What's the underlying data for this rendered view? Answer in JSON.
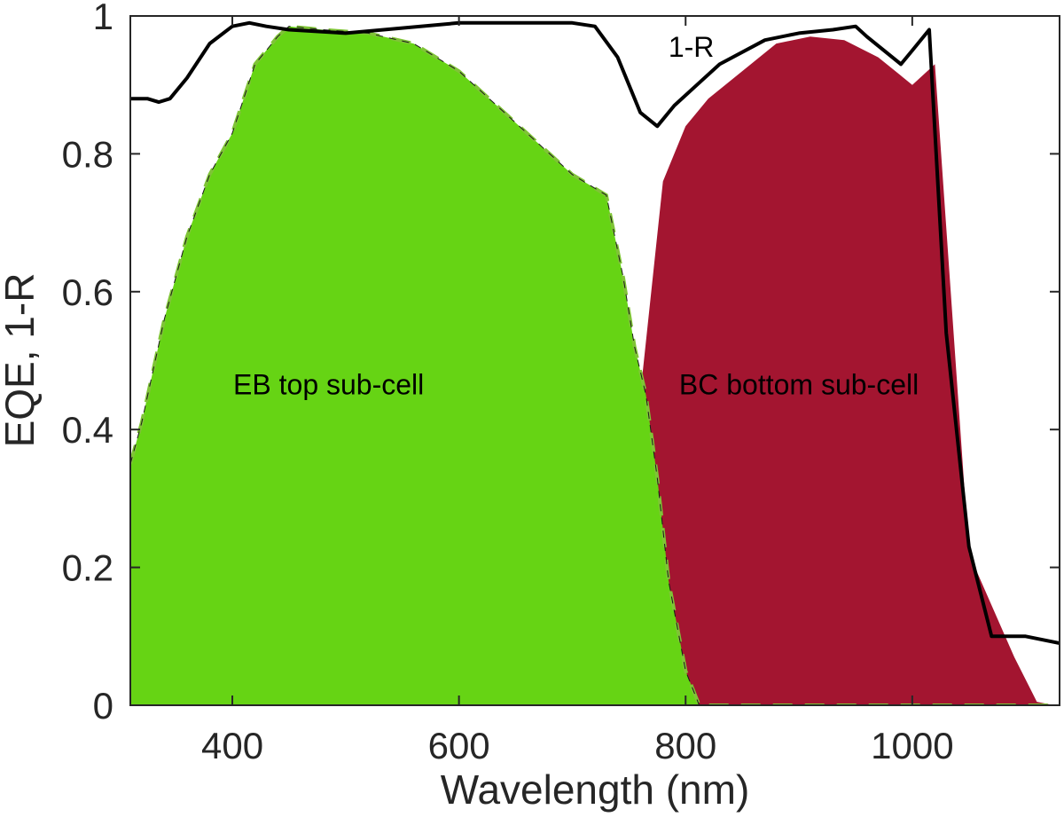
{
  "chart_data": {
    "type": "area",
    "xlabel": "Wavelength (nm)",
    "ylabel": "EQE, 1-R",
    "xlim": [
      310,
      1130
    ],
    "ylim": [
      0,
      1
    ],
    "xticks": [
      400,
      600,
      800,
      1000
    ],
    "yticks": [
      0,
      0.2,
      0.4,
      0.6,
      0.8,
      1
    ],
    "ytick_labels": [
      "0",
      "0.2",
      "0.4",
      "0.6",
      "0.8",
      "1"
    ],
    "grid": false,
    "colors": {
      "top": "#66d414",
      "bottom": "#a31530",
      "line": "#000000",
      "dash": "#7fc436"
    },
    "annotations": [
      {
        "text": "EB top sub-cell",
        "x": 485,
        "y": 0.465
      },
      {
        "text": "BC bottom sub-cell",
        "x": 900,
        "y": 0.465
      },
      {
        "text": "1-R",
        "x": 805,
        "y": 0.955
      }
    ],
    "series": [
      {
        "role": "bottom-eqe",
        "x": [
          310,
          400,
          500,
          520,
          550,
          600,
          650,
          700,
          730,
          760,
          780,
          800,
          820,
          850,
          880,
          910,
          940,
          970,
          1000,
          1020,
          1050,
          1090,
          1110,
          1125
        ],
        "y": [
          0,
          0,
          0,
          0.005,
          0.02,
          0.08,
          0.15,
          0.23,
          0.26,
          0.45,
          0.76,
          0.84,
          0.88,
          0.92,
          0.96,
          0.97,
          0.965,
          0.94,
          0.9,
          0.93,
          0.22,
          0.07,
          0.005,
          0
        ]
      },
      {
        "role": "top-eqe",
        "x": [
          310,
          320,
          340,
          360,
          380,
          400,
          420,
          440,
          450,
          480,
          520,
          560,
          600,
          640,
          680,
          700,
          730,
          745,
          755,
          765,
          775,
          785,
          800,
          812,
          850,
          1000,
          1130
        ],
        "y": [
          0.35,
          0.41,
          0.56,
          0.68,
          0.77,
          0.83,
          0.93,
          0.97,
          0.985,
          0.98,
          0.975,
          0.96,
          0.92,
          0.86,
          0.8,
          0.77,
          0.74,
          0.62,
          0.52,
          0.45,
          0.33,
          0.18,
          0.05,
          0,
          0,
          0,
          0
        ]
      },
      {
        "name": "1-R",
        "x": [
          310,
          325,
          335,
          345,
          360,
          380,
          400,
          415,
          430,
          450,
          500,
          600,
          650,
          700,
          720,
          740,
          760,
          775,
          790,
          810,
          830,
          870,
          900,
          930,
          950,
          960,
          990,
          1000,
          1015,
          1030,
          1050,
          1070,
          1100,
          1130
        ],
        "y": [
          0.88,
          0.88,
          0.875,
          0.88,
          0.91,
          0.96,
          0.985,
          0.99,
          0.985,
          0.98,
          0.975,
          0.99,
          0.99,
          0.99,
          0.985,
          0.94,
          0.86,
          0.84,
          0.87,
          0.9,
          0.93,
          0.965,
          0.975,
          0.98,
          0.985,
          0.97,
          0.93,
          0.95,
          0.98,
          0.54,
          0.23,
          0.1,
          0.1,
          0.09
        ]
      }
    ]
  }
}
